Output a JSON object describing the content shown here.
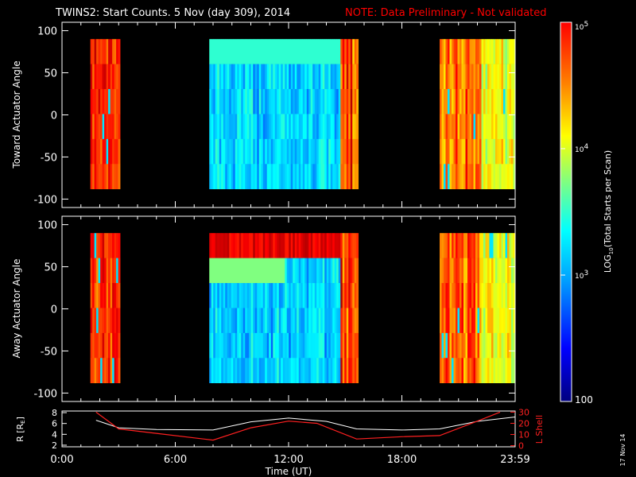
{
  "title": "TWINS2: Start Counts.  5 Nov (day 309), 2014",
  "note": "NOTE: Data Preliminary - Not validated",
  "date_stamp": "17 Nov 14",
  "colors": {
    "note": "#ff0000",
    "axis": "#ffffff",
    "background": "#000000",
    "lshell": "#ff2020"
  },
  "chart_data": [
    {
      "type": "heatmap",
      "ylabel": "Toward Actuator Angle",
      "ylim": [
        -110,
        110
      ],
      "yticks": [
        "100",
        "50",
        "0",
        "-50",
        "-100"
      ],
      "angle_range": [
        -88,
        90
      ],
      "data_blocks_hours": [
        [
          1.5,
          3.0
        ],
        [
          7.8,
          15.6
        ],
        [
          20.0,
          24.0
        ]
      ],
      "grid": false
    },
    {
      "type": "heatmap",
      "ylabel": "Away Actuator Angle",
      "ylim": [
        -110,
        110
      ],
      "yticks": [
        "100",
        "50",
        "0",
        "-50",
        "-100"
      ],
      "angle_range": [
        -88,
        90
      ],
      "data_blocks_hours": [
        [
          1.5,
          3.0
        ],
        [
          7.8,
          15.6
        ],
        [
          20.0,
          24.0
        ]
      ],
      "grid": false
    },
    {
      "type": "line",
      "xlabel": "Time (UT)",
      "xticks": [
        "0:00",
        "6:00",
        "12:00",
        "18:00",
        "23:59"
      ],
      "xlim": [
        0,
        24
      ],
      "ylabel_left": "R [R",
      "ylabel_left_sub": "E",
      "ylabel_left_end": "]",
      "ylim_left": [
        2,
        8
      ],
      "yticks_left": [
        "8",
        "6",
        "4",
        "2"
      ],
      "ylabel_right": "L Shell",
      "ylim_right": [
        0,
        30
      ],
      "yticks_right": [
        "30",
        "20",
        "10",
        "0"
      ],
      "series": [
        {
          "axis": "left",
          "x": [
            1.8,
            3.0,
            5.0,
            8.0,
            10.0,
            12.0,
            14.0,
            15.6,
            18.0,
            20.0,
            22.0,
            24.0
          ],
          "y": [
            6.6,
            5.2,
            4.9,
            4.8,
            6.3,
            7.0,
            6.4,
            5.0,
            4.8,
            5.0,
            6.4,
            7.2
          ]
        },
        {
          "axis": "right",
          "x": [
            1.8,
            3.0,
            5.0,
            8.0,
            10.0,
            12.0,
            13.5,
            15.6,
            18.0,
            20.0,
            22.0,
            23.2
          ],
          "y": [
            30,
            15,
            11,
            5,
            16,
            22,
            20,
            6,
            8,
            9,
            22,
            30
          ]
        }
      ]
    }
  ],
  "colorbar": {
    "label_prefix": "LOG",
    "label_sub": "10",
    "label_suffix": "(Total Starts per Scan)",
    "scale": "log",
    "range": [
      100,
      100000
    ],
    "ticks": [
      {
        "value": 100000,
        "base": "10",
        "exp": "5"
      },
      {
        "value": 10000,
        "base": "10",
        "exp": "4"
      },
      {
        "value": 1000,
        "base": "10",
        "exp": "3"
      },
      {
        "value": 100,
        "base": "100",
        "exp": ""
      }
    ]
  }
}
